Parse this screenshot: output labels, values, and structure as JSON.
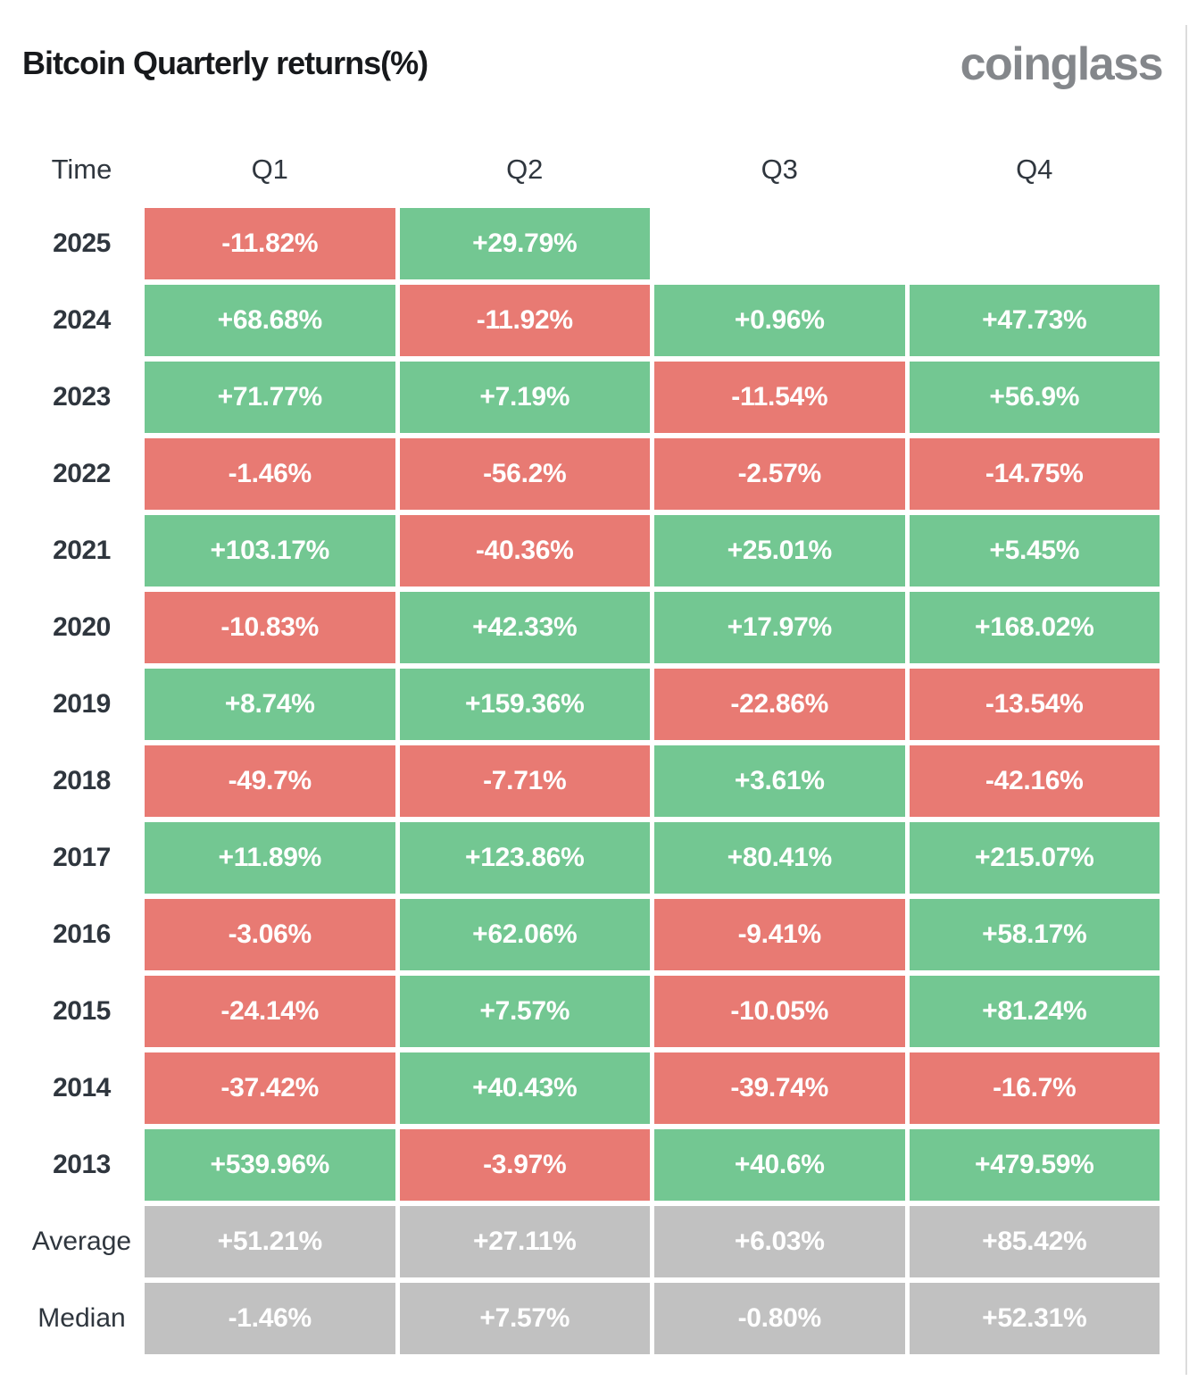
{
  "header": {
    "title": "Bitcoin Quarterly returns(%)",
    "logo": "coinglass"
  },
  "table": {
    "columns": [
      "Time",
      "Q1",
      "Q2",
      "Q3",
      "Q4"
    ],
    "rows": [
      {
        "label": "2025",
        "kind": "year",
        "cells": [
          {
            "text": "-11.82%",
            "type": "negative"
          },
          {
            "text": "+29.79%",
            "type": "positive"
          },
          {
            "text": "",
            "type": "empty"
          },
          {
            "text": "",
            "type": "empty"
          }
        ]
      },
      {
        "label": "2024",
        "kind": "year",
        "cells": [
          {
            "text": "+68.68%",
            "type": "positive"
          },
          {
            "text": "-11.92%",
            "type": "negative"
          },
          {
            "text": "+0.96%",
            "type": "positive"
          },
          {
            "text": "+47.73%",
            "type": "positive"
          }
        ]
      },
      {
        "label": "2023",
        "kind": "year",
        "cells": [
          {
            "text": "+71.77%",
            "type": "positive"
          },
          {
            "text": "+7.19%",
            "type": "positive"
          },
          {
            "text": "-11.54%",
            "type": "negative"
          },
          {
            "text": "+56.9%",
            "type": "positive"
          }
        ]
      },
      {
        "label": "2022",
        "kind": "year",
        "cells": [
          {
            "text": "-1.46%",
            "type": "negative"
          },
          {
            "text": "-56.2%",
            "type": "negative"
          },
          {
            "text": "-2.57%",
            "type": "negative"
          },
          {
            "text": "-14.75%",
            "type": "negative"
          }
        ]
      },
      {
        "label": "2021",
        "kind": "year",
        "cells": [
          {
            "text": "+103.17%",
            "type": "positive"
          },
          {
            "text": "-40.36%",
            "type": "negative"
          },
          {
            "text": "+25.01%",
            "type": "positive"
          },
          {
            "text": "+5.45%",
            "type": "positive"
          }
        ]
      },
      {
        "label": "2020",
        "kind": "year",
        "cells": [
          {
            "text": "-10.83%",
            "type": "negative"
          },
          {
            "text": "+42.33%",
            "type": "positive"
          },
          {
            "text": "+17.97%",
            "type": "positive"
          },
          {
            "text": "+168.02%",
            "type": "positive"
          }
        ]
      },
      {
        "label": "2019",
        "kind": "year",
        "cells": [
          {
            "text": "+8.74%",
            "type": "positive"
          },
          {
            "text": "+159.36%",
            "type": "positive"
          },
          {
            "text": "-22.86%",
            "type": "negative"
          },
          {
            "text": "-13.54%",
            "type": "negative"
          }
        ]
      },
      {
        "label": "2018",
        "kind": "year",
        "cells": [
          {
            "text": "-49.7%",
            "type": "negative"
          },
          {
            "text": "-7.71%",
            "type": "negative"
          },
          {
            "text": "+3.61%",
            "type": "positive"
          },
          {
            "text": "-42.16%",
            "type": "negative"
          }
        ]
      },
      {
        "label": "2017",
        "kind": "year",
        "cells": [
          {
            "text": "+11.89%",
            "type": "positive"
          },
          {
            "text": "+123.86%",
            "type": "positive"
          },
          {
            "text": "+80.41%",
            "type": "positive"
          },
          {
            "text": "+215.07%",
            "type": "positive"
          }
        ]
      },
      {
        "label": "2016",
        "kind": "year",
        "cells": [
          {
            "text": "-3.06%",
            "type": "negative"
          },
          {
            "text": "+62.06%",
            "type": "positive"
          },
          {
            "text": "-9.41%",
            "type": "negative"
          },
          {
            "text": "+58.17%",
            "type": "positive"
          }
        ]
      },
      {
        "label": "2015",
        "kind": "year",
        "cells": [
          {
            "text": "-24.14%",
            "type": "negative"
          },
          {
            "text": "+7.57%",
            "type": "positive"
          },
          {
            "text": "-10.05%",
            "type": "negative"
          },
          {
            "text": "+81.24%",
            "type": "positive"
          }
        ]
      },
      {
        "label": "2014",
        "kind": "year",
        "cells": [
          {
            "text": "-37.42%",
            "type": "negative"
          },
          {
            "text": "+40.43%",
            "type": "positive"
          },
          {
            "text": "-39.74%",
            "type": "negative"
          },
          {
            "text": "-16.7%",
            "type": "negative"
          }
        ]
      },
      {
        "label": "2013",
        "kind": "year",
        "cells": [
          {
            "text": "+539.96%",
            "type": "positive"
          },
          {
            "text": "-3.97%",
            "type": "negative"
          },
          {
            "text": "+40.6%",
            "type": "positive"
          },
          {
            "text": "+479.59%",
            "type": "positive"
          }
        ]
      },
      {
        "label": "Average",
        "kind": "summary",
        "cells": [
          {
            "text": "+51.21%",
            "type": "neutral"
          },
          {
            "text": "+27.11%",
            "type": "neutral"
          },
          {
            "text": "+6.03%",
            "type": "neutral"
          },
          {
            "text": "+85.42%",
            "type": "neutral"
          }
        ]
      },
      {
        "label": "Median",
        "kind": "summary",
        "cells": [
          {
            "text": "-1.46%",
            "type": "neutral"
          },
          {
            "text": "+7.57%",
            "type": "neutral"
          },
          {
            "text": "-0.80%",
            "type": "neutral"
          },
          {
            "text": "+52.31%",
            "type": "neutral"
          }
        ]
      }
    ]
  },
  "colors": {
    "positive": "#73c792",
    "negative": "#e87a73",
    "neutral": "#c1c1c1",
    "title_text": "#17191c",
    "label_text": "#2f363e",
    "cell_text": "#ffffff",
    "logo_gray": "#84878b"
  },
  "chart_data": {
    "type": "heatmap",
    "title": "Bitcoin Quarterly returns(%)",
    "columns": [
      "Q1",
      "Q2",
      "Q3",
      "Q4"
    ],
    "row_labels": [
      "2025",
      "2024",
      "2023",
      "2022",
      "2021",
      "2020",
      "2019",
      "2018",
      "2017",
      "2016",
      "2015",
      "2014",
      "2013",
      "Average",
      "Median"
    ],
    "values_percent": [
      [
        -11.82,
        29.79,
        null,
        null
      ],
      [
        68.68,
        -11.92,
        0.96,
        47.73
      ],
      [
        71.77,
        7.19,
        -11.54,
        56.9
      ],
      [
        -1.46,
        -56.2,
        -2.57,
        -14.75
      ],
      [
        103.17,
        -40.36,
        25.01,
        5.45
      ],
      [
        -10.83,
        42.33,
        17.97,
        168.02
      ],
      [
        8.74,
        159.36,
        -22.86,
        -13.54
      ],
      [
        -49.7,
        -7.71,
        3.61,
        -42.16
      ],
      [
        11.89,
        123.86,
        80.41,
        215.07
      ],
      [
        -3.06,
        62.06,
        -9.41,
        58.17
      ],
      [
        -24.14,
        7.57,
        -10.05,
        81.24
      ],
      [
        -37.42,
        40.43,
        -39.74,
        -16.7
      ],
      [
        539.96,
        -3.97,
        40.6,
        479.59
      ],
      [
        51.21,
        27.11,
        6.03,
        85.42
      ],
      [
        -1.46,
        7.57,
        -0.8,
        52.31
      ]
    ],
    "color_coding": "positive cells green, negative cells red, Average/Median summary rows gray",
    "legend": "none",
    "grid": "white gaps between cells"
  }
}
